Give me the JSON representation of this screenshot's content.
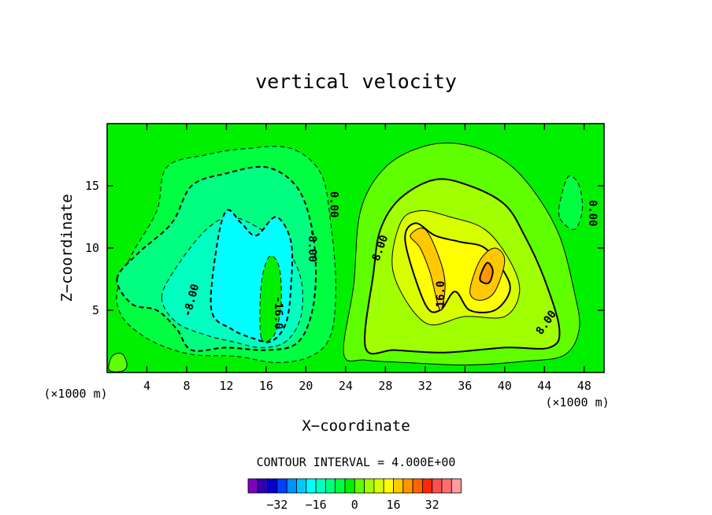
{
  "chart_data": {
    "type": "heatmap",
    "title": "vertical velocity",
    "xlabel": "X−coordinate",
    "ylabel": "Z−coordinate",
    "x_units": "(×1000 m)",
    "z_units": "(×1000 m)",
    "xlim": [
      0,
      50
    ],
    "ylim": [
      0,
      20
    ],
    "x_ticks": [
      4,
      8,
      12,
      16,
      20,
      24,
      28,
      32,
      36,
      40,
      44,
      48
    ],
    "y_ticks": [
      5,
      10,
      15
    ],
    "contour_interval_text": "CONTOUR INTERVAL = 4.000E+00",
    "contour_interval": 4,
    "contour_labels": [
      {
        "text": "0.00",
        "x": 22.8,
        "z": 13.5,
        "rotate": 90
      },
      {
        "text": "0.00",
        "x": 48.8,
        "z": 12.8,
        "rotate": 90
      },
      {
        "text": "-8.00",
        "x": 20.6,
        "z": 10.2,
        "rotate": 90
      },
      {
        "text": "-8.00",
        "x": 8.5,
        "z": 5.8,
        "rotate": -75
      },
      {
        "text": "-16.0",
        "x": 17.2,
        "z": 4.8,
        "rotate": 90
      },
      {
        "text": "8.00",
        "x": 27.5,
        "z": 10.0,
        "rotate": -70
      },
      {
        "text": "16.0",
        "x": 33.6,
        "z": 6.3,
        "rotate": -90
      },
      {
        "text": "8.00",
        "x": 44.2,
        "z": 4.0,
        "rotate": -55
      }
    ],
    "colorbar": {
      "colors": [
        "#8000c0",
        "#3000b0",
        "#0000c8",
        "#0040ff",
        "#0090ff",
        "#00c8ff",
        "#00ffff",
        "#00ffc0",
        "#00ff80",
        "#00ff40",
        "#00f000",
        "#60ff00",
        "#a0ff00",
        "#d8ff00",
        "#ffff00",
        "#ffc800",
        "#ff9600",
        "#ff6400",
        "#ff2800",
        "#ff5050",
        "#ff6e6e",
        "#ff9c9c"
      ],
      "tick_labels": [
        "−32",
        "−16",
        "0",
        "16",
        "32"
      ],
      "tick_values": [
        -32,
        -16,
        0,
        16,
        32
      ]
    },
    "levels": [
      {
        "value": -16,
        "color": "#00ffff"
      },
      {
        "value": -12,
        "color": "#00ffc0"
      },
      {
        "value": -8,
        "color": "#00ff80"
      },
      {
        "value": -4,
        "color": "#00ff40"
      },
      {
        "value": 0,
        "color": "#00f000"
      },
      {
        "value": 4,
        "color": "#60ff00"
      },
      {
        "value": 8,
        "color": "#a0ff00"
      },
      {
        "value": 12,
        "color": "#d8ff00"
      },
      {
        "value": 16,
        "color": "#ffff00"
      },
      {
        "value": 20,
        "color": "#ffc800"
      },
      {
        "value": 24,
        "color": "#ff9600"
      }
    ],
    "regions": {
      "downdraft": [
        {
          "level": -4,
          "path": [
            [
              1.0,
              6.5
            ],
            [
              2.5,
              9.5
            ],
            [
              5.0,
              13.0
            ],
            [
              6.0,
              16.5
            ],
            [
              10.0,
              17.5
            ],
            [
              14.0,
              18.0
            ],
            [
              18.5,
              18.0
            ],
            [
              21.5,
              16.0
            ],
            [
              22.5,
              12.0
            ],
            [
              23.0,
              7.0
            ],
            [
              22.5,
              3.0
            ],
            [
              20.5,
              1.3
            ],
            [
              17.0,
              0.8
            ],
            [
              13.0,
              1.3
            ],
            [
              9.0,
              1.4
            ],
            [
              6.0,
              2.0
            ],
            [
              3.5,
              3.0
            ],
            [
              1.5,
              4.5
            ]
          ]
        },
        {
          "level": -8,
          "path": [
            [
              1.0,
              7.5
            ],
            [
              3.0,
              9.5
            ],
            [
              6.5,
              12.0
            ],
            [
              8.5,
              15.0
            ],
            [
              12.0,
              16.0
            ],
            [
              16.0,
              16.5
            ],
            [
              19.0,
              15.0
            ],
            [
              20.5,
              12.0
            ],
            [
              21.0,
              8.0
            ],
            [
              20.5,
              4.5
            ],
            [
              19.0,
              2.3
            ],
            [
              16.0,
              1.8
            ],
            [
              12.0,
              2.0
            ],
            [
              8.5,
              1.8
            ],
            [
              7.0,
              3.5
            ],
            [
              5.0,
              5.0
            ],
            [
              2.5,
              5.5
            ]
          ]
        },
        {
          "level": -12,
          "path": [
            [
              5.5,
              6.0
            ],
            [
              7.0,
              8.5
            ],
            [
              10.0,
              11.5
            ],
            [
              12.5,
              12.5
            ],
            [
              15.5,
              11.5
            ],
            [
              18.0,
              10.0
            ],
            [
              19.5,
              7.5
            ],
            [
              19.5,
              4.5
            ],
            [
              18.0,
              2.5
            ],
            [
              15.5,
              2.0
            ],
            [
              12.5,
              2.5
            ],
            [
              10.0,
              3.0
            ],
            [
              7.0,
              4.0
            ]
          ]
        },
        {
          "level": -16,
          "path": [
            [
              10.5,
              5.0
            ],
            [
              11.0,
              10.0
            ],
            [
              12.0,
              13.0
            ],
            [
              13.5,
              12.0
            ],
            [
              15.0,
              11.0
            ],
            [
              17.0,
              12.5
            ],
            [
              18.5,
              10.5
            ],
            [
              18.5,
              7.0
            ],
            [
              18.0,
              4.0
            ],
            [
              16.5,
              2.5
            ],
            [
              14.5,
              2.8
            ],
            [
              12.5,
              3.5
            ]
          ]
        },
        {
          "level": -20,
          "path": [
            [
              15.5,
              2.8
            ],
            [
              15.5,
              7.0
            ],
            [
              16.3,
              9.3
            ],
            [
              17.3,
              8.5
            ],
            [
              17.5,
              5.5
            ],
            [
              16.8,
              3.0
            ]
          ]
        }
      ],
      "updraft": [
        {
          "level": 4,
          "path": [
            [
              23.8,
              1.5
            ],
            [
              24.8,
              7.0
            ],
            [
              25.5,
              13.0
            ],
            [
              28.0,
              16.5
            ],
            [
              32.0,
              18.2
            ],
            [
              36.0,
              18.3
            ],
            [
              40.0,
              17.0
            ],
            [
              43.0,
              14.5
            ],
            [
              45.5,
              11.0
            ],
            [
              47.0,
              6.5
            ],
            [
              47.5,
              3.5
            ],
            [
              46.0,
              1.4
            ],
            [
              42.0,
              0.9
            ],
            [
              36.0,
              0.6
            ],
            [
              30.0,
              0.8
            ],
            [
              26.0,
              1.0
            ]
          ]
        },
        {
          "level": 8,
          "path": [
            [
              26.0,
              2.0
            ],
            [
              26.8,
              8.0
            ],
            [
              27.5,
              11.5
            ],
            [
              29.5,
              14.0
            ],
            [
              33.0,
              15.5
            ],
            [
              36.5,
              15.0
            ],
            [
              40.0,
              13.5
            ],
            [
              42.0,
              11.0
            ],
            [
              44.0,
              7.5
            ],
            [
              45.5,
              3.5
            ],
            [
              44.5,
              2.0
            ],
            [
              40.0,
              2.0
            ],
            [
              34.0,
              1.6
            ],
            [
              29.0,
              1.8
            ]
          ]
        },
        {
          "level": 12,
          "path": [
            [
              28.8,
              8.0
            ],
            [
              29.5,
              12.0
            ],
            [
              31.5,
              13.0
            ],
            [
              34.5,
              12.5
            ],
            [
              38.0,
              11.5
            ],
            [
              40.5,
              9.0
            ],
            [
              41.5,
              6.5
            ],
            [
              40.0,
              4.5
            ],
            [
              36.0,
              4.5
            ],
            [
              32.0,
              4.0
            ]
          ]
        },
        {
          "level": 16,
          "path": [
            [
              30.0,
              10.5
            ],
            [
              31.0,
              12.0
            ],
            [
              33.0,
              11.0
            ],
            [
              35.5,
              10.5
            ],
            [
              38.0,
              10.0
            ],
            [
              40.0,
              8.0
            ],
            [
              40.5,
              6.5
            ],
            [
              39.0,
              5.0
            ],
            [
              36.5,
              5.0
            ],
            [
              35.0,
              6.5
            ],
            [
              33.5,
              5.0
            ],
            [
              32.0,
              5.5
            ]
          ]
        },
        {
          "level": 20,
          "path": [
            [
              30.5,
              11.0
            ],
            [
              31.5,
              10.0
            ],
            [
              32.5,
              8.0
            ],
            [
              33.5,
              5.0
            ],
            [
              34.0,
              7.0
            ],
            [
              33.5,
              9.0
            ],
            [
              32.0,
              11.5
            ]
          ]
        },
        {
          "level": 20,
          "path": [
            [
              36.5,
              6.5
            ],
            [
              37.5,
              9.0
            ],
            [
              39.0,
              10.0
            ],
            [
              40.0,
              9.0
            ],
            [
              39.0,
              6.5
            ],
            [
              37.5,
              5.8
            ]
          ]
        },
        {
          "level": 24,
          "path": [
            [
              37.5,
              7.5
            ],
            [
              38.2,
              8.8
            ],
            [
              38.8,
              8.2
            ],
            [
              38.4,
              7.2
            ]
          ]
        }
      ],
      "misc": [
        {
          "level": -4,
          "path": [
            [
              45.5,
              12.5
            ],
            [
              45.8,
              14.5
            ],
            [
              46.5,
              15.8
            ],
            [
              47.5,
              15.0
            ],
            [
              47.8,
              13.0
            ],
            [
              47.0,
              11.5
            ]
          ]
        },
        {
          "level": 4,
          "path": [
            [
              0.2,
              0.2
            ],
            [
              0.5,
              1.3
            ],
            [
              1.5,
              1.5
            ],
            [
              2.0,
              0.6
            ],
            [
              1.5,
              0.1
            ]
          ]
        }
      ]
    }
  }
}
